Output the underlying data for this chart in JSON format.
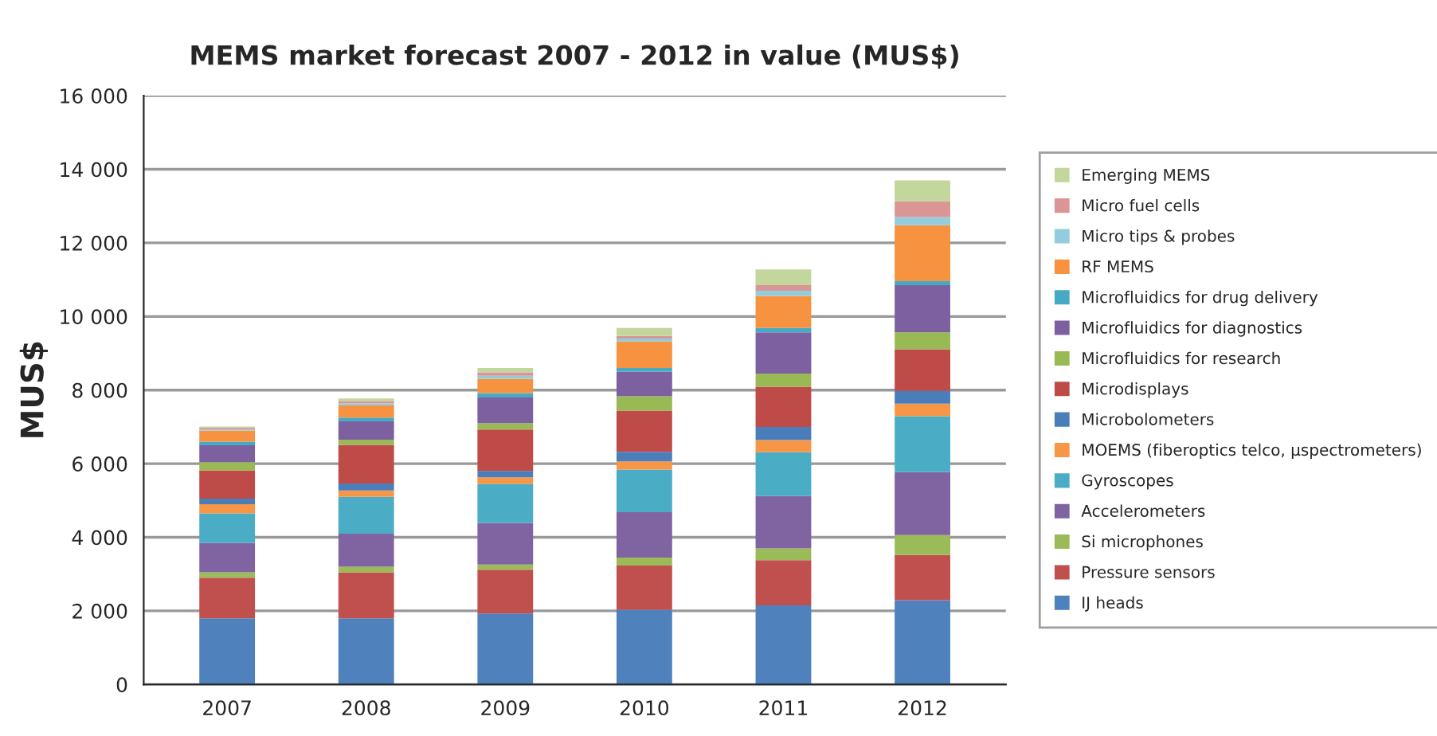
{
  "chart_data": {
    "type": "bar",
    "stacked": true,
    "title": "MEMS market forecast 2007 - 2012 in value (MUS$)",
    "ylabel": "MUS$",
    "categories": [
      "2007",
      "2008",
      "2009",
      "2010",
      "2011",
      "2012"
    ],
    "ylim": [
      0,
      16000
    ],
    "yticks": [
      {
        "value": 0,
        "label": "0"
      },
      {
        "value": 2000,
        "label": "2 000"
      },
      {
        "value": 4000,
        "label": "4 000"
      },
      {
        "value": 6000,
        "label": "6 000"
      },
      {
        "value": 8000,
        "label": "8 000"
      },
      {
        "value": 10000,
        "label": "10 000"
      },
      {
        "value": 12000,
        "label": "12 000"
      },
      {
        "value": 14000,
        "label": "14 000"
      },
      {
        "value": 16000,
        "label": "16 000"
      }
    ],
    "grid": "y",
    "legend": "right",
    "series": [
      {
        "name": "IJ heads",
        "color": "#4f81bd",
        "values": [
          1800,
          1800,
          1930,
          2030,
          2150,
          2290
        ]
      },
      {
        "name": "Pressure sensors",
        "color": "#c0504d",
        "values": [
          1100,
          1250,
          1190,
          1200,
          1230,
          1230
        ]
      },
      {
        "name": "Si microphones",
        "color": "#9bbb59",
        "values": [
          150,
          150,
          140,
          220,
          320,
          540
        ]
      },
      {
        "name": "Accelerometers",
        "color": "#8064a2",
        "values": [
          800,
          900,
          1130,
          1230,
          1420,
          1710
        ]
      },
      {
        "name": "Gyroscopes",
        "color": "#4bacc6",
        "values": [
          800,
          1000,
          1060,
          1160,
          1190,
          1520
        ]
      },
      {
        "name": "MOEMS (fiberoptics telco, µspectrometers)",
        "color": "#f79646",
        "values": [
          250,
          170,
          180,
          220,
          330,
          340
        ]
      },
      {
        "name": "Microbolometers",
        "color": "#4a7ebb",
        "values": [
          150,
          190,
          170,
          260,
          360,
          350
        ]
      },
      {
        "name": "Microdisplays",
        "color": "#be4b48",
        "values": [
          770,
          1050,
          1130,
          1120,
          1090,
          1130
        ]
      },
      {
        "name": "Microfluidics for research",
        "color": "#98b954",
        "values": [
          220,
          140,
          170,
          390,
          360,
          460
        ]
      },
      {
        "name": "Microfluidics for diagnostics",
        "color": "#7d60a0",
        "values": [
          460,
          500,
          700,
          670,
          1120,
          1280
        ]
      },
      {
        "name": "Microfluidics for drug delivery",
        "color": "#46aac5",
        "values": [
          100,
          100,
          120,
          100,
          120,
          110
        ]
      },
      {
        "name": "RF MEMS",
        "color": "#f69240",
        "values": [
          300,
          330,
          390,
          720,
          870,
          1520
        ]
      },
      {
        "name": "Micro tips & probes",
        "color": "#93cddd",
        "values": [
          40,
          60,
          80,
          80,
          140,
          220
        ]
      },
      {
        "name": "Micro fuel cells",
        "color": "#d99694",
        "values": [
          40,
          60,
          90,
          70,
          150,
          430
        ]
      },
      {
        "name": "Emerging MEMS",
        "color": "#c3d69b",
        "values": [
          30,
          70,
          120,
          220,
          430,
          570
        ]
      }
    ]
  }
}
